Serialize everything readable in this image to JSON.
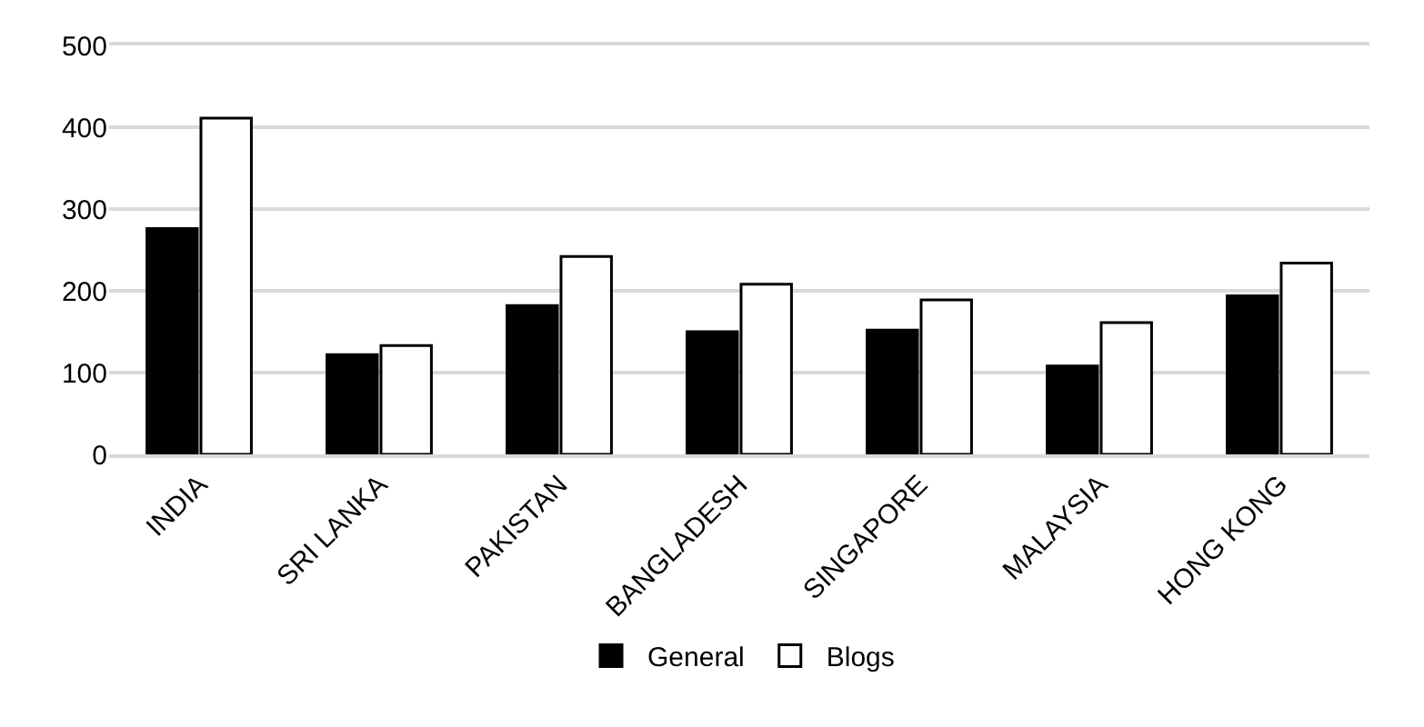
{
  "chart_data": {
    "type": "bar",
    "categories": [
      "INDIA",
      "SRI LANKA",
      "PAKISTAN",
      "BANGLADESH",
      "SINGAPORE",
      "MALAYSIA",
      "HONG KONG"
    ],
    "series": [
      {
        "name": "General",
        "color": "#000000",
        "values": [
          276,
          122,
          182,
          150,
          152,
          108,
          194
        ]
      },
      {
        "name": "Blogs",
        "color": "#ffffff",
        "values": [
          411,
          133,
          242,
          208,
          189,
          161,
          234
        ]
      }
    ],
    "ylim": [
      0,
      500
    ],
    "yticks": [
      0,
      100,
      200,
      300,
      400,
      500
    ],
    "grid": "y",
    "legend": "bottom"
  }
}
